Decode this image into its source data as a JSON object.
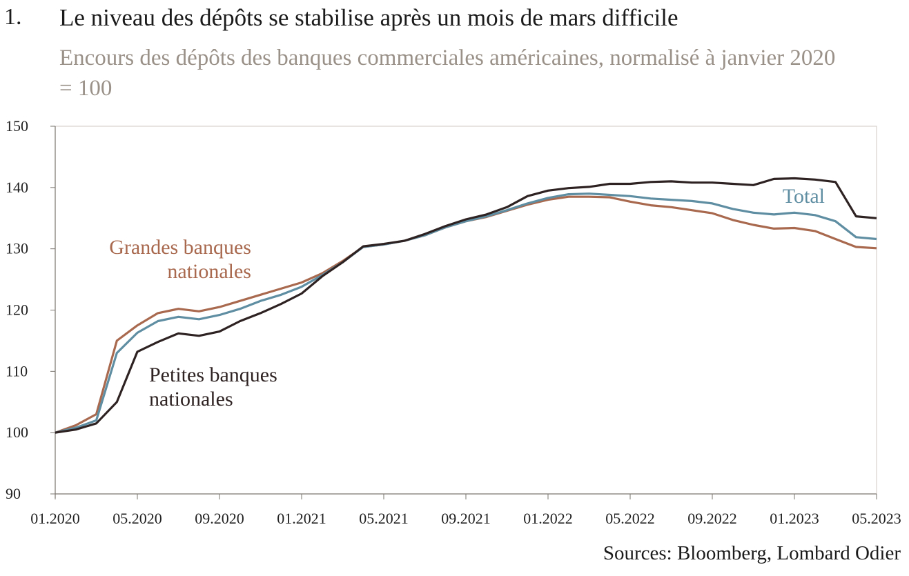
{
  "header": {
    "number": "1.",
    "title": "Le niveau des dépôts se stabilise après un mois de mars difficile",
    "subtitle": "Encours des dépôts des banques commerciales américaines, normalisé à janvier 2020 = 100"
  },
  "footer": {
    "source": "Sources: Bloomberg, Lombard Odier"
  },
  "chart_data": {
    "type": "line",
    "title": "Le niveau des dépôts se stabilise après un mois de mars difficile",
    "subtitle": "Encours des dépôts des banques commerciales américaines, normalisé à janvier 2020 = 100",
    "xlabel": "",
    "ylabel": "",
    "ylim": [
      90,
      150
    ],
    "yticks": [
      90,
      100,
      110,
      120,
      130,
      140,
      150
    ],
    "xlim": [
      "2020-01",
      "2023-05"
    ],
    "xticks": [
      "01.2020",
      "05.2020",
      "09.2020",
      "01.2021",
      "05.2021",
      "09.2021",
      "01.2022",
      "05.2022",
      "09.2022",
      "01.2023",
      "05.2023"
    ],
    "grid": false,
    "legend": "inline labels",
    "x": [
      "2020-01",
      "2020-02",
      "2020-03",
      "2020-04",
      "2020-05",
      "2020-06",
      "2020-07",
      "2020-08",
      "2020-09",
      "2020-10",
      "2020-11",
      "2020-12",
      "2021-01",
      "2021-02",
      "2021-03",
      "2021-04",
      "2021-05",
      "2021-06",
      "2021-07",
      "2021-08",
      "2021-09",
      "2021-10",
      "2021-11",
      "2021-12",
      "2022-01",
      "2022-02",
      "2022-03",
      "2022-04",
      "2022-05",
      "2022-06",
      "2022-07",
      "2022-08",
      "2022-09",
      "2022-10",
      "2022-11",
      "2022-12",
      "2023-01",
      "2023-02",
      "2023-03",
      "2023-04",
      "2023-05"
    ],
    "series": [
      {
        "name": "Grandes banques nationales",
        "color": "#a8694f",
        "label_lines": [
          "Grandes banques",
          "nationales"
        ],
        "values": [
          100,
          101.2,
          103,
          115,
          117.5,
          119.5,
          120.2,
          119.8,
          120.5,
          121.5,
          122.5,
          123.5,
          124.5,
          126,
          128,
          130.3,
          130.7,
          131.3,
          132.2,
          133.5,
          134.5,
          135.2,
          136.2,
          137.2,
          138,
          138.5,
          138.5,
          138.4,
          137.7,
          137.1,
          136.8,
          136.3,
          135.8,
          134.7,
          133.9,
          133.3,
          133.4,
          132.9,
          131.6,
          130.3,
          130.1
        ]
      },
      {
        "name": "Total",
        "color": "#5f8ea3",
        "label_lines": [
          "Total"
        ],
        "values": [
          100,
          100.8,
          102,
          113,
          116.3,
          118.2,
          118.9,
          118.5,
          119.2,
          120.2,
          121.5,
          122.5,
          123.8,
          125.7,
          127.8,
          130.3,
          130.7,
          131.3,
          132.2,
          133.5,
          134.5,
          135.3,
          136.3,
          137.4,
          138.3,
          138.9,
          139,
          138.8,
          138.6,
          138.2,
          138,
          137.8,
          137.4,
          136.5,
          135.9,
          135.6,
          135.9,
          135.5,
          134.5,
          131.9,
          131.6
        ]
      },
      {
        "name": "Petites banques nationales",
        "color": "#2e2222",
        "label_lines": [
          "Petites banques",
          "nationales"
        ],
        "values": [
          100,
          100.5,
          101.5,
          105,
          113.2,
          114.8,
          116.2,
          115.8,
          116.5,
          118.2,
          119.5,
          121,
          122.7,
          125.5,
          127.8,
          130.4,
          130.8,
          131.3,
          132.4,
          133.7,
          134.8,
          135.6,
          136.8,
          138.6,
          139.5,
          139.9,
          140.1,
          140.6,
          140.6,
          140.9,
          141,
          140.8,
          140.8,
          140.6,
          140.4,
          141.4,
          141.5,
          141.3,
          140.9,
          135.3,
          135
        ]
      }
    ]
  }
}
